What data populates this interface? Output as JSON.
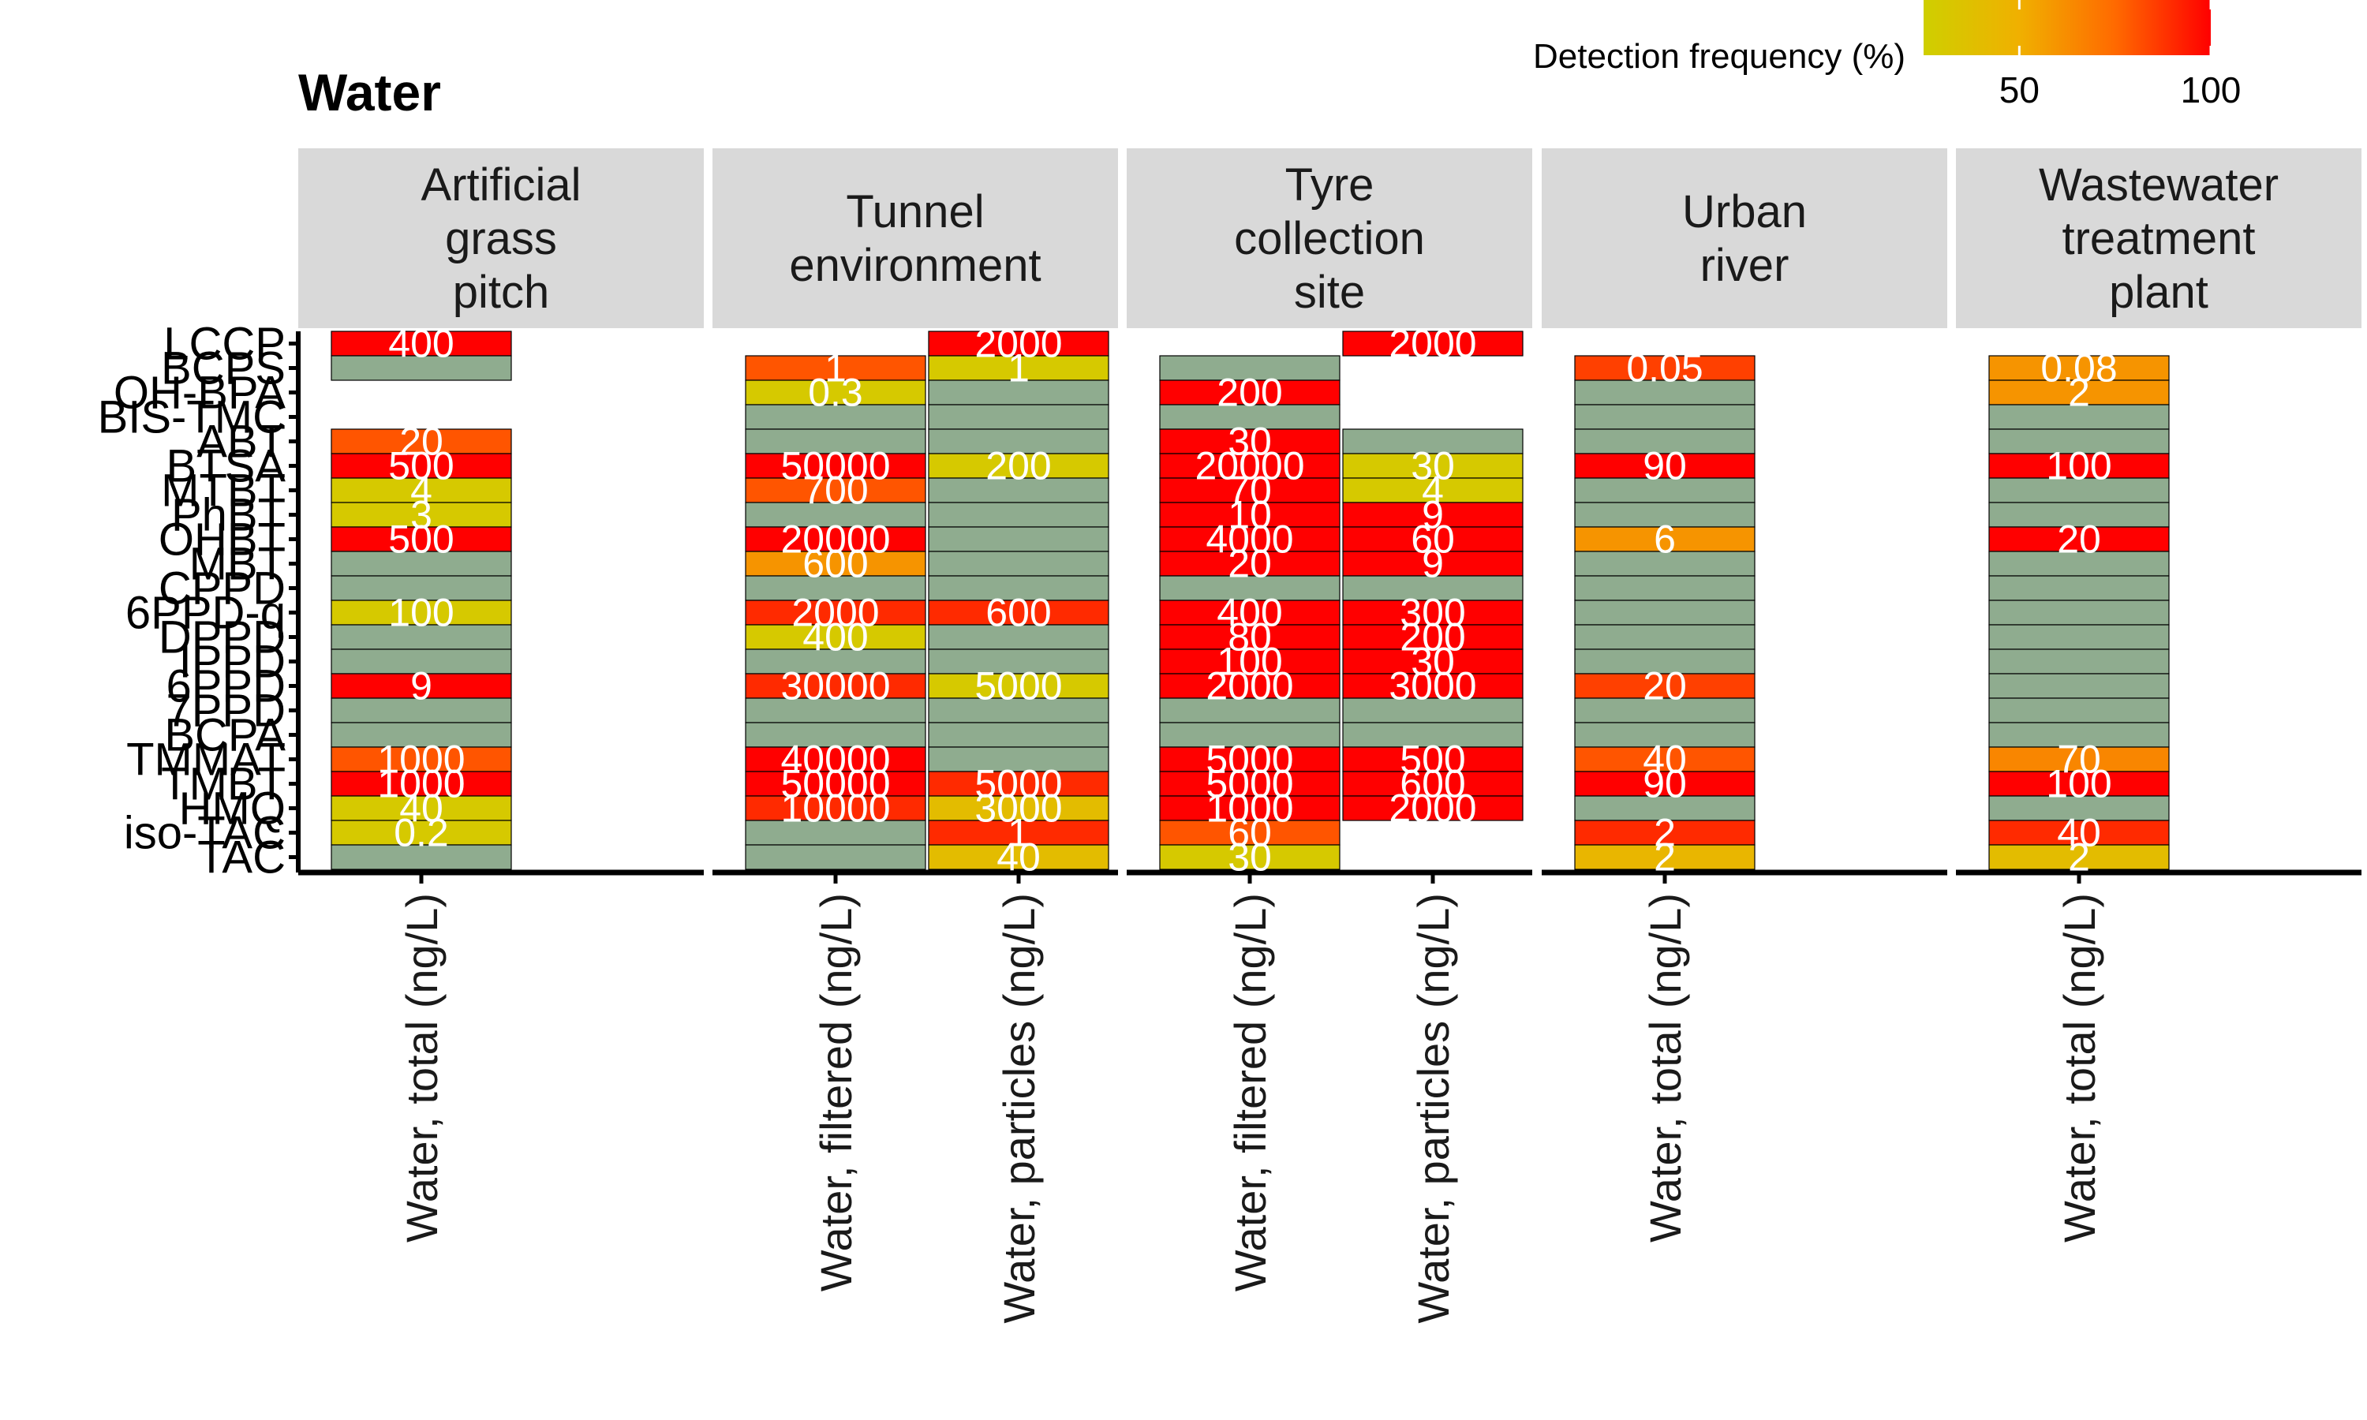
{
  "chart_data": {
    "type": "heatmap",
    "title": "Water",
    "legend": {
      "title": "Detection frequency (%)",
      "placement": "top-right",
      "ticks": [
        50,
        100
      ],
      "range": [
        25,
        100
      ],
      "color_stops": [
        {
          "value": 25,
          "color": "#cfcf00"
        },
        {
          "value": 50,
          "color": "#f0b000"
        },
        {
          "value": 75,
          "color": "#ff6a00"
        },
        {
          "value": 100,
          "color": "#ff0000"
        }
      ]
    },
    "colors": {
      "not_detected": "#8fac8f",
      "strip_bg": "#d9d9d9",
      "cell_text": "#ffffff",
      "border": "#000000"
    },
    "rows": [
      "LCCP",
      "BCPS",
      "OH-BPA",
      "BIS-TMC",
      "ABT",
      "BTSA",
      "MTBT",
      "PhBT",
      "OHBT",
      "MBT",
      "CPPD",
      "6PPD-q",
      "DPPD",
      "IPPD",
      "6PPD",
      "7PPD",
      "BCPA",
      "TMMAT",
      "TMBT",
      "HMQ",
      "iso-TAC",
      "TAC"
    ],
    "panels": [
      {
        "label": "Artificial\ngrass\npitch",
        "columns": [
          {
            "label": "Water, total (ng/L)",
            "cells": [
              {
                "row": "LCCP",
                "value": "400",
                "df": 100
              },
              {
                "row": "BCPS",
                "nd": true
              },
              {
                "row": "ABT",
                "value": "20",
                "df": 80
              },
              {
                "row": "BTSA",
                "value": "500",
                "df": 100
              },
              {
                "row": "MTBT",
                "value": "4",
                "df": 30
              },
              {
                "row": "PhBT",
                "value": "3",
                "df": 30
              },
              {
                "row": "OHBT",
                "value": "500",
                "df": 100
              },
              {
                "row": "MBT",
                "nd": true
              },
              {
                "row": "CPPD",
                "nd": true
              },
              {
                "row": "6PPD-q",
                "value": "100",
                "df": 30
              },
              {
                "row": "DPPD",
                "nd": true
              },
              {
                "row": "IPPD",
                "nd": true
              },
              {
                "row": "6PPD",
                "value": "9",
                "df": 100
              },
              {
                "row": "7PPD",
                "nd": true
              },
              {
                "row": "BCPA",
                "nd": true
              },
              {
                "row": "TMMAT",
                "value": "1000",
                "df": 80
              },
              {
                "row": "TMBT",
                "value": "1000",
                "df": 100
              },
              {
                "row": "HMQ",
                "value": "40",
                "df": 30
              },
              {
                "row": "iso-TAC",
                "value": "0.2",
                "df": 30
              },
              {
                "row": "TAC",
                "nd": true
              }
            ]
          }
        ]
      },
      {
        "label": "Tunnel\nenvironment",
        "columns": [
          {
            "label": "Water, filtered (ng/L)",
            "cells": [
              {
                "row": "BCPS",
                "value": "1",
                "df": 80
              },
              {
                "row": "OH-BPA",
                "value": "0.3",
                "df": 30
              },
              {
                "row": "BIS-TMC",
                "nd": true
              },
              {
                "row": "ABT",
                "nd": true
              },
              {
                "row": "BTSA",
                "value": "50000",
                "df": 100
              },
              {
                "row": "MTBT",
                "value": "700",
                "df": 80
              },
              {
                "row": "PhBT",
                "nd": true
              },
              {
                "row": "OHBT",
                "value": "20000",
                "df": 100
              },
              {
                "row": "MBT",
                "value": "600",
                "df": 60
              },
              {
                "row": "CPPD",
                "nd": true
              },
              {
                "row": "6PPD-q",
                "value": "2000",
                "df": 90
              },
              {
                "row": "DPPD",
                "value": "400",
                "df": 30
              },
              {
                "row": "IPPD",
                "nd": true
              },
              {
                "row": "6PPD",
                "value": "30000",
                "df": 90
              },
              {
                "row": "7PPD",
                "nd": true
              },
              {
                "row": "BCPA",
                "nd": true
              },
              {
                "row": "TMMAT",
                "value": "40000",
                "df": 100
              },
              {
                "row": "TMBT",
                "value": "50000",
                "df": 100
              },
              {
                "row": "HMQ",
                "value": "10000",
                "df": 90
              },
              {
                "row": "iso-TAC",
                "nd": true
              },
              {
                "row": "TAC",
                "nd": true
              }
            ]
          },
          {
            "label": "Water, particles (ng/L)",
            "cells": [
              {
                "row": "LCCP",
                "value": "2000",
                "df": 100
              },
              {
                "row": "BCPS",
                "value": "1",
                "df": 30
              },
              {
                "row": "OH-BPA",
                "nd": true
              },
              {
                "row": "BIS-TMC",
                "nd": true
              },
              {
                "row": "ABT",
                "nd": true
              },
              {
                "row": "BTSA",
                "value": "200",
                "df": 30
              },
              {
                "row": "MTBT",
                "nd": true
              },
              {
                "row": "PhBT",
                "nd": true
              },
              {
                "row": "OHBT",
                "nd": true
              },
              {
                "row": "MBT",
                "nd": true
              },
              {
                "row": "CPPD",
                "nd": true
              },
              {
                "row": "6PPD-q",
                "value": "600",
                "df": 90
              },
              {
                "row": "DPPD",
                "nd": true
              },
              {
                "row": "IPPD",
                "nd": true
              },
              {
                "row": "6PPD",
                "value": "5000",
                "df": 30
              },
              {
                "row": "7PPD",
                "nd": true
              },
              {
                "row": "BCPA",
                "nd": true
              },
              {
                "row": "TMMAT",
                "nd": true
              },
              {
                "row": "TMBT",
                "value": "5000",
                "df": 90
              },
              {
                "row": "HMQ",
                "value": "3000",
                "df": 40
              },
              {
                "row": "iso-TAC",
                "value": "1",
                "df": 90
              },
              {
                "row": "TAC",
                "value": "40",
                "df": 40
              }
            ]
          }
        ]
      },
      {
        "label": "Tyre\ncollection\nsite",
        "columns": [
          {
            "label": "Water, filtered (ng/L)",
            "cells": [
              {
                "row": "BCPS",
                "nd": true
              },
              {
                "row": "OH-BPA",
                "value": "200",
                "df": 100
              },
              {
                "row": "BIS-TMC",
                "nd": true
              },
              {
                "row": "ABT",
                "value": "30",
                "df": 100
              },
              {
                "row": "BTSA",
                "value": "20000",
                "df": 100
              },
              {
                "row": "MTBT",
                "value": "70",
                "df": 100
              },
              {
                "row": "PhBT",
                "value": "10",
                "df": 100
              },
              {
                "row": "OHBT",
                "value": "4000",
                "df": 100
              },
              {
                "row": "MBT",
                "value": "20",
                "df": 100
              },
              {
                "row": "CPPD",
                "nd": true
              },
              {
                "row": "6PPD-q",
                "value": "400",
                "df": 100
              },
              {
                "row": "DPPD",
                "value": "80",
                "df": 100
              },
              {
                "row": "IPPD",
                "value": "100",
                "df": 100
              },
              {
                "row": "6PPD",
                "value": "2000",
                "df": 100
              },
              {
                "row": "7PPD",
                "nd": true
              },
              {
                "row": "BCPA",
                "nd": true
              },
              {
                "row": "TMMAT",
                "value": "5000",
                "df": 100
              },
              {
                "row": "TMBT",
                "value": "5000",
                "df": 100
              },
              {
                "row": "HMQ",
                "value": "1000",
                "df": 100
              },
              {
                "row": "iso-TAC",
                "value": "60",
                "df": 80
              },
              {
                "row": "TAC",
                "value": "30",
                "df": 30
              }
            ]
          },
          {
            "label": "Water, particles (ng/L)",
            "cells": [
              {
                "row": "LCCP",
                "value": "2000",
                "df": 100
              },
              {
                "row": "ABT",
                "nd": true
              },
              {
                "row": "BTSA",
                "value": "30",
                "df": 30
              },
              {
                "row": "MTBT",
                "value": "4",
                "df": 30
              },
              {
                "row": "PhBT",
                "value": "9",
                "df": 100
              },
              {
                "row": "OHBT",
                "value": "60",
                "df": 100
              },
              {
                "row": "MBT",
                "value": "9",
                "df": 100
              },
              {
                "row": "CPPD",
                "nd": true
              },
              {
                "row": "6PPD-q",
                "value": "300",
                "df": 100
              },
              {
                "row": "DPPD",
                "value": "200",
                "df": 100
              },
              {
                "row": "IPPD",
                "value": "30",
                "df": 100
              },
              {
                "row": "6PPD",
                "value": "3000",
                "df": 100
              },
              {
                "row": "7PPD",
                "nd": true
              },
              {
                "row": "BCPA",
                "nd": true
              },
              {
                "row": "TMMAT",
                "value": "500",
                "df": 100
              },
              {
                "row": "TMBT",
                "value": "600",
                "df": 100
              },
              {
                "row": "HMQ",
                "value": "2000",
                "df": 100
              }
            ]
          }
        ]
      },
      {
        "label": "Urban\nriver",
        "columns": [
          {
            "label": "Water, total (ng/L)",
            "cells": [
              {
                "row": "BCPS",
                "value": "0.05",
                "df": 85
              },
              {
                "row": "OH-BPA",
                "nd": true
              },
              {
                "row": "BIS-TMC",
                "nd": true
              },
              {
                "row": "ABT",
                "nd": true
              },
              {
                "row": "BTSA",
                "value": "90",
                "df": 100
              },
              {
                "row": "MTBT",
                "nd": true
              },
              {
                "row": "PhBT",
                "nd": true
              },
              {
                "row": "OHBT",
                "value": "6",
                "df": 60
              },
              {
                "row": "MBT",
                "nd": true
              },
              {
                "row": "CPPD",
                "nd": true
              },
              {
                "row": "6PPD-q",
                "nd": true
              },
              {
                "row": "DPPD",
                "nd": true
              },
              {
                "row": "IPPD",
                "nd": true
              },
              {
                "row": "6PPD",
                "value": "20",
                "df": 85
              },
              {
                "row": "7PPD",
                "nd": true
              },
              {
                "row": "BCPA",
                "nd": true
              },
              {
                "row": "TMMAT",
                "value": "40",
                "df": 80
              },
              {
                "row": "TMBT",
                "value": "90",
                "df": 100
              },
              {
                "row": "HMQ",
                "nd": true
              },
              {
                "row": "iso-TAC",
                "value": "2",
                "df": 90
              },
              {
                "row": "TAC",
                "value": "2",
                "df": 45
              }
            ]
          }
        ]
      },
      {
        "label": "Wastewater\ntreatment\nplant",
        "columns": [
          {
            "label": "Water, total (ng/L)",
            "cells": [
              {
                "row": "BCPS",
                "value": "0.08",
                "df": 60
              },
              {
                "row": "OH-BPA",
                "value": "2",
                "df": 60
              },
              {
                "row": "BIS-TMC",
                "nd": true
              },
              {
                "row": "ABT",
                "nd": true
              },
              {
                "row": "BTSA",
                "value": "100",
                "df": 100
              },
              {
                "row": "MTBT",
                "nd": true
              },
              {
                "row": "PhBT",
                "nd": true
              },
              {
                "row": "OHBT",
                "value": "20",
                "df": 100
              },
              {
                "row": "MBT",
                "nd": true
              },
              {
                "row": "CPPD",
                "nd": true
              },
              {
                "row": "6PPD-q",
                "nd": true
              },
              {
                "row": "DPPD",
                "nd": true
              },
              {
                "row": "IPPD",
                "nd": true
              },
              {
                "row": "6PPD",
                "nd": true
              },
              {
                "row": "7PPD",
                "nd": true
              },
              {
                "row": "BCPA",
                "nd": true
              },
              {
                "row": "TMMAT",
                "value": "70",
                "df": 65
              },
              {
                "row": "TMBT",
                "value": "100",
                "df": 100
              },
              {
                "row": "HMQ",
                "nd": true
              },
              {
                "row": "iso-TAC",
                "value": "40",
                "df": 90
              },
              {
                "row": "TAC",
                "value": "2",
                "df": 40
              }
            ]
          }
        ]
      }
    ]
  }
}
